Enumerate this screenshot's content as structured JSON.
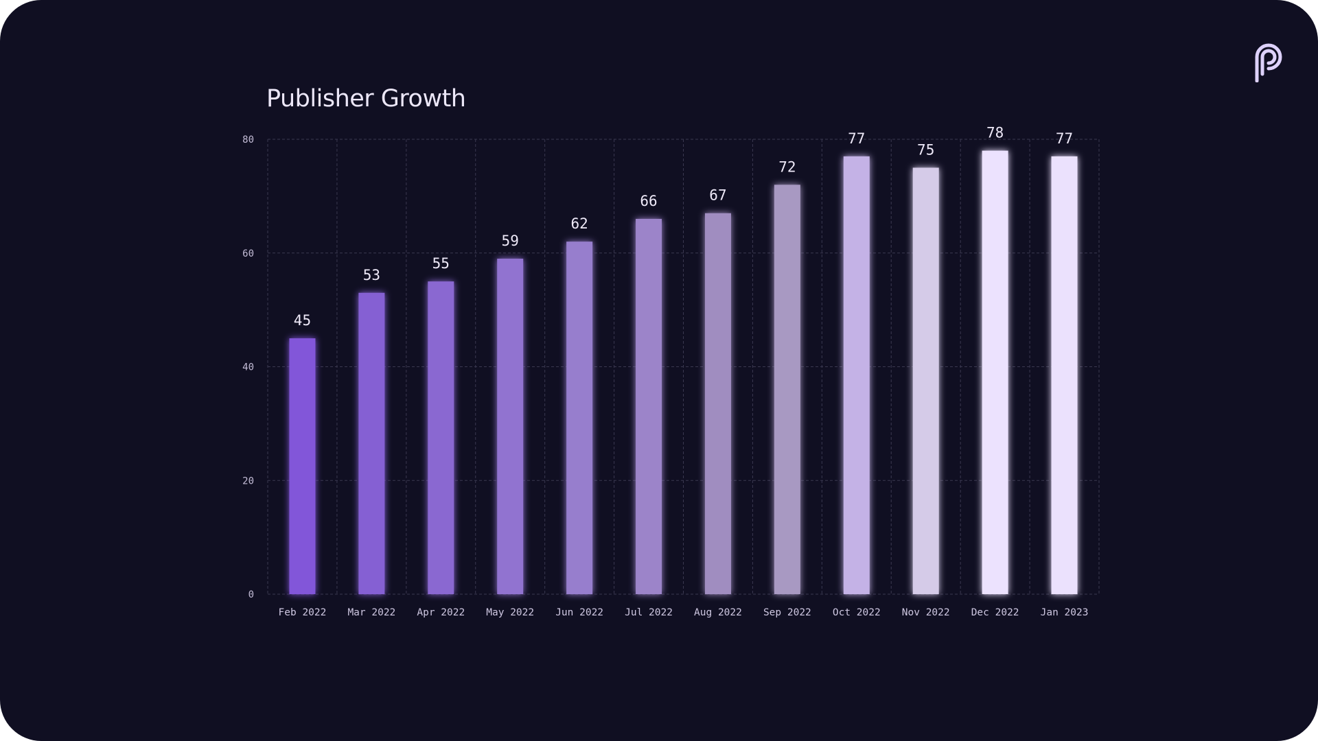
{
  "page": {
    "title": "Publisher Growth",
    "logo_icon": "p-logo-icon"
  },
  "colors": {
    "background": "#100f22",
    "grid": "#3a3850",
    "bars": [
      "#8257d9",
      "#8560d3",
      "#8a67d1",
      "#9173d0",
      "#977ecd",
      "#9c84c9",
      "#a08dc0",
      "#a899c2",
      "#c4b2e6",
      "#d5cbe8",
      "#ece2fe",
      "#ebe1fd"
    ]
  },
  "chart_data": {
    "type": "bar",
    "title": "Publisher Growth",
    "xlabel": "",
    "ylabel": "",
    "categories": [
      "Feb 2022",
      "Mar 2022",
      "Apr 2022",
      "May 2022",
      "Jun 2022",
      "Jul 2022",
      "Aug 2022",
      "Sep 2022",
      "Oct 2022",
      "Nov 2022",
      "Dec 2022",
      "Jan 2023"
    ],
    "values": [
      45,
      53,
      55,
      59,
      62,
      66,
      67,
      72,
      77,
      75,
      78,
      77
    ],
    "value_labels": [
      "45",
      "53",
      "55",
      "59",
      "62",
      "66",
      "67",
      "72",
      "77",
      "75",
      "78",
      "77"
    ],
    "ylim": [
      0,
      80
    ],
    "yticks": [
      0,
      20,
      40,
      60,
      80
    ],
    "ytick_labels": [
      "0",
      "20",
      "40",
      "60",
      "80"
    ],
    "grid": true,
    "legend": "none"
  }
}
